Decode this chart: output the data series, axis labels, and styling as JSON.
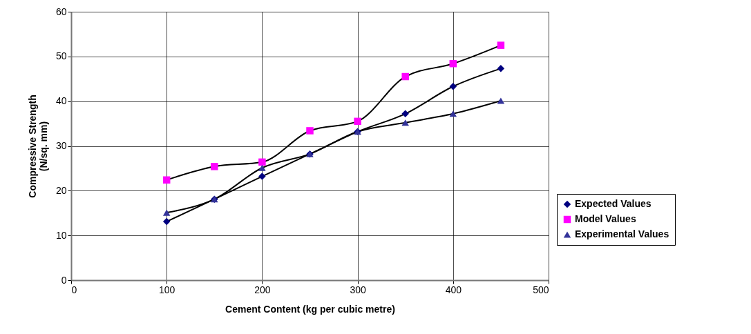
{
  "chart_data": {
    "type": "line",
    "xlabel": "Cement Content (kg per cubic metre)",
    "ylabel": "Compressive Strength\n(N/sq. mm)",
    "x": [
      100,
      150,
      200,
      250,
      300,
      350,
      400,
      450
    ],
    "series": [
      {
        "name": "Expected Values",
        "color": "#000080",
        "marker": "diamond",
        "values": [
          13.1,
          18.1,
          23.2,
          28.2,
          33.2,
          37.2,
          43.3,
          47.3
        ]
      },
      {
        "name": "Model Values",
        "color": "#ff00ff",
        "marker": "square",
        "values": [
          22.4,
          25.4,
          26.4,
          33.4,
          35.5,
          45.5,
          48.4,
          52.5
        ]
      },
      {
        "name": "Experimental Values",
        "color": "#333399",
        "marker": "triangle",
        "values": [
          15.1,
          18.1,
          25.1,
          28.2,
          33.2,
          35.2,
          37.2,
          40.1
        ]
      }
    ],
    "xlim": [
      0,
      500
    ],
    "xticks": [
      0,
      100,
      200,
      300,
      400,
      500
    ],
    "ylim": [
      0,
      60
    ],
    "yticks": [
      0,
      10,
      20,
      30,
      40,
      50,
      60
    ],
    "grid": true,
    "legend": "right",
    "line_style": "solid"
  }
}
